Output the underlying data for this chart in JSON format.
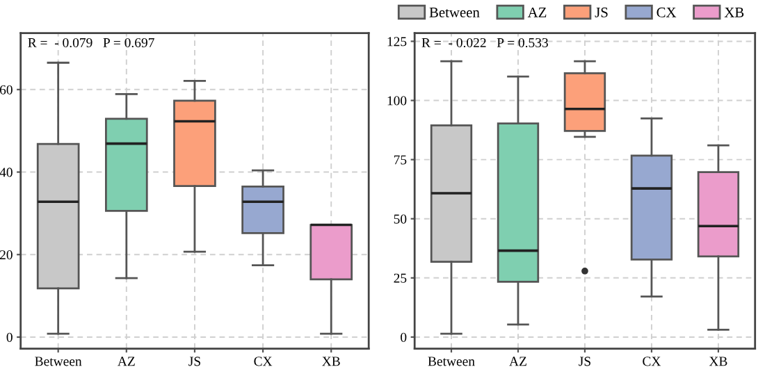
{
  "chart_data": [
    {
      "type": "box",
      "categories": [
        "Between",
        "AZ",
        "JS",
        "CX",
        "XB"
      ],
      "grid": true,
      "legend": "top right",
      "ylim": [
        -2.8,
        73.7
      ],
      "yticks": [
        0,
        20,
        40,
        60
      ],
      "series": [
        {
          "name": "Between",
          "color": "#c8c8c8",
          "boxes": [
            {
              "low": 0.8,
              "q1": 11.8,
              "median": 32.8,
              "q3": 46.8,
              "high": 66.5
            },
            null,
            null,
            null,
            null
          ]
        },
        {
          "name": "AZ",
          "color": "#7fcfb0",
          "boxes": [
            null,
            {
              "low": 14.3,
              "q1": 30.6,
              "median": 46.9,
              "q3": 52.9,
              "high": 58.9
            },
            null,
            null,
            null
          ]
        },
        {
          "name": "JS",
          "color": "#fca07a",
          "boxes": [
            null,
            null,
            {
              "low": 20.7,
              "q1": 36.6,
              "median": 52.3,
              "q3": 57.3,
              "high": 62.1
            },
            null,
            null
          ]
        },
        {
          "name": "CX",
          "color": "#97a8d0",
          "boxes": [
            null,
            null,
            null,
            {
              "low": 17.4,
              "q1": 25.2,
              "median": 32.8,
              "q3": 36.5,
              "high": 40.4
            },
            null
          ]
        },
        {
          "name": "XB",
          "color": "#eb9ccb",
          "boxes": [
            null,
            null,
            null,
            null,
            {
              "low": 0.8,
              "q1": 14.0,
              "median": 27.2,
              "q3": 27.2,
              "high": 27.2
            }
          ]
        }
      ],
      "annotations": [
        "R =  - 0.079   P = 0.697"
      ]
    },
    {
      "type": "box",
      "categories": [
        "Between",
        "AZ",
        "JS",
        "CX",
        "XB"
      ],
      "grid": true,
      "ylim": [
        -4.9,
        128.5
      ],
      "yticks": [
        0,
        25,
        50,
        75,
        100,
        125
      ],
      "series": [
        {
          "color": "#c8c8c8",
          "boxes": [
            {
              "low": 1.4,
              "q1": 31.8,
              "median": 60.8,
              "q3": 89.5,
              "high": 116.6
            },
            null,
            null,
            null,
            null
          ]
        },
        {
          "color": "#7fcfb0",
          "boxes": [
            null,
            {
              "low": 5.3,
              "q1": 23.4,
              "median": 36.5,
              "q3": 90.3,
              "high": 110.1
            },
            null,
            null,
            null
          ]
        },
        {
          "color": "#fca07a",
          "boxes": [
            null,
            null,
            {
              "low": 84.6,
              "q1": 87.1,
              "median": 96.4,
              "q3": 111.5,
              "high": 116.6,
              "outliers": [
                27.9
              ]
            },
            null,
            null
          ]
        },
        {
          "color": "#97a8d0",
          "boxes": [
            null,
            null,
            null,
            {
              "low": 17.1,
              "q1": 32.8,
              "median": 62.8,
              "q3": 76.7,
              "high": 92.4
            },
            null
          ]
        },
        {
          "color": "#eb9ccb",
          "boxes": [
            null,
            null,
            null,
            null,
            {
              "low": 3.1,
              "q1": 34.1,
              "median": 46.9,
              "q3": 69.7,
              "high": 81.0
            }
          ]
        }
      ],
      "annotations": [
        "R =  - 0.022   P = 0.533"
      ]
    }
  ]
}
